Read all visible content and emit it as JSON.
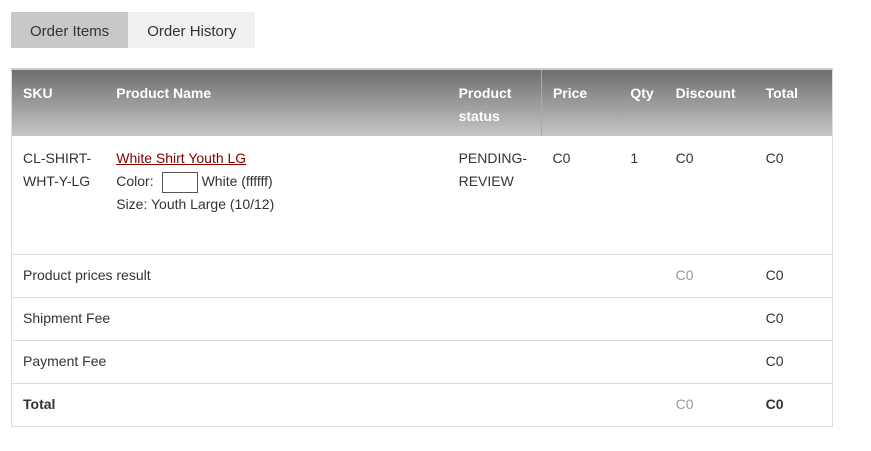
{
  "tabs": [
    {
      "label": "Order Items",
      "active": true
    },
    {
      "label": "Order History",
      "active": false
    }
  ],
  "columns": [
    "SKU",
    "Product Name",
    "Product status",
    "Price",
    "Qty",
    "Discount",
    "Total"
  ],
  "item": {
    "sku": "CL-SHIRT-WHT-Y-LG",
    "name": "White Shirt Youth LG",
    "color_label": "Color:",
    "color_value": "White (ffffff)",
    "swatch_color": "#ffffff",
    "size": "Size: Youth Large (10/12)",
    "status": "PENDING-REVIEW",
    "price": "C0",
    "qty": "1",
    "discount": "C0",
    "total": "C0"
  },
  "summary": [
    {
      "label": "Product prices result",
      "discount": "C0",
      "total": "C0"
    },
    {
      "label": "Shipment Fee",
      "discount": "",
      "total": "C0"
    },
    {
      "label": "Payment Fee",
      "discount": "",
      "total": "C0"
    },
    {
      "label": "Total",
      "discount": "C0",
      "total": "C0"
    }
  ]
}
